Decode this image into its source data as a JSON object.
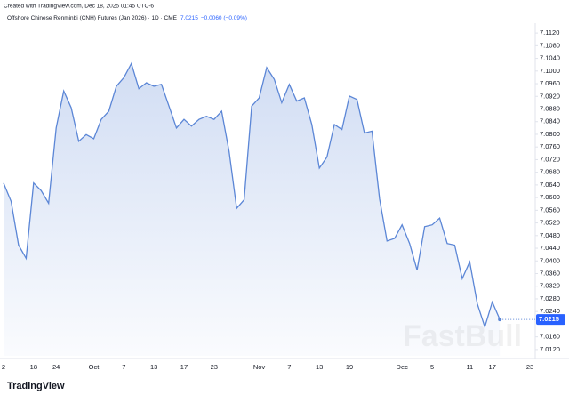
{
  "header": {
    "created": "Created with TradingView.com, Dec 18, 2025 01:45 UTC-6"
  },
  "footer": {
    "brand": "TradingView",
    "watermark": "FastBull"
  },
  "chart_data": {
    "type": "area",
    "title": "Offshore Chinese Renminbi (CNH) Futures (Jan 2026) · 1D · CME",
    "price": "7.0215",
    "change": "−0.0060 (−0.09%)",
    "categories": [
      "2",
      null,
      null,
      null,
      "18",
      null,
      null,
      "24",
      null,
      null,
      null,
      null,
      "Oct",
      null,
      null,
      null,
      "7",
      null,
      null,
      null,
      "13",
      null,
      null,
      null,
      "17",
      null,
      null,
      null,
      "23",
      null,
      null,
      null,
      null,
      null,
      "Nov",
      null,
      null,
      null,
      "7",
      null,
      null,
      null,
      "13",
      null,
      null,
      null,
      "19",
      null,
      null,
      null,
      null,
      null,
      null,
      "Dec",
      null,
      null,
      null,
      "5",
      null,
      null,
      null,
      null,
      "11",
      null,
      null,
      "17",
      null,
      null,
      null,
      null,
      "23"
    ],
    "series": [
      {
        "name": "CNH Futures",
        "color": "#5b86d6",
        "values": [
          7.0646,
          7.0588,
          7.045,
          7.0408,
          7.0646,
          7.0622,
          7.0582,
          7.082,
          7.0937,
          7.0884,
          7.0778,
          7.0799,
          7.0786,
          7.0847,
          7.0873,
          7.0952,
          7.0979,
          7.1024,
          7.0944,
          7.0963,
          7.0952,
          7.0958,
          7.0889,
          7.082,
          7.0847,
          7.0826,
          7.0847,
          7.0857,
          7.0847,
          7.0873,
          7.0746,
          7.0566,
          7.0593,
          7.0889,
          7.0915,
          7.1011,
          7.0974,
          7.09,
          7.0958,
          7.0905,
          7.0915,
          7.0831,
          7.0693,
          7.0728,
          7.0831,
          7.0815,
          7.0921,
          7.091,
          7.0804,
          7.081,
          7.0596,
          7.0463,
          7.0471,
          7.0514,
          7.0455,
          7.0371,
          7.0508,
          7.0514,
          7.0535,
          7.0455,
          7.045,
          7.0344,
          7.0397,
          7.0265,
          7.0191,
          7.027,
          7.0215,
          null,
          null,
          null,
          null
        ]
      }
    ],
    "ylim": [
      7.01,
      7.114
    ],
    "yticks": [
      {
        "value": 7.012,
        "label": "7.0120"
      },
      {
        "value": 7.016,
        "label": "7.0160"
      },
      {
        "value": 7.024,
        "label": "7.0240"
      },
      {
        "value": 7.028,
        "label": "7.0280"
      },
      {
        "value": 7.032,
        "label": "7.0320"
      },
      {
        "value": 7.036,
        "label": "7.0360"
      },
      {
        "value": 7.04,
        "label": "7.0400"
      },
      {
        "value": 7.044,
        "label": "7.0440"
      },
      {
        "value": 7.048,
        "label": "7.0480"
      },
      {
        "value": 7.052,
        "label": "7.0520"
      },
      {
        "value": 7.056,
        "label": "7.0560"
      },
      {
        "value": 7.06,
        "label": "7.0600"
      },
      {
        "value": 7.064,
        "label": "7.0640"
      },
      {
        "value": 7.068,
        "label": "7.0680"
      },
      {
        "value": 7.072,
        "label": "7.0720"
      },
      {
        "value": 7.076,
        "label": "7.0760"
      },
      {
        "value": 7.08,
        "label": "7.0800"
      },
      {
        "value": 7.084,
        "label": "7.0840"
      },
      {
        "value": 7.088,
        "label": "7.0880"
      },
      {
        "value": 7.092,
        "label": "7.0920"
      },
      {
        "value": 7.096,
        "label": "7.0960"
      },
      {
        "value": 7.1,
        "label": "7.1000"
      },
      {
        "value": 7.104,
        "label": "7.1040"
      },
      {
        "value": 7.108,
        "label": "7.1080"
      },
      {
        "value": 7.112,
        "label": "7.1120"
      }
    ],
    "grid": false
  }
}
